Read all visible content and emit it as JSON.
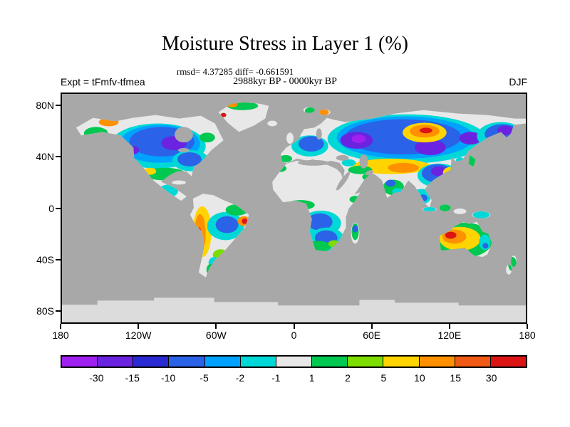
{
  "title": "Moisture Stress in Layer 1 (%)",
  "stats_line": "rmsd= 4.37285 diff= -0.661591",
  "period_line": "2988kyr BP - 0000kyr BP",
  "experiment_label": "Expt = tFmfv-tfmea",
  "season_label": "DJF",
  "axes": {
    "y_ticks": [
      "80N",
      "40N",
      "0",
      "40S",
      "80S"
    ],
    "x_ticks": [
      "180",
      "120W",
      "60W",
      "0",
      "60E",
      "120E",
      "180"
    ]
  },
  "colorbar": {
    "labels": [
      "-30",
      "-15",
      "-10",
      "-5",
      "-2",
      "-1",
      "1",
      "2",
      "5",
      "10",
      "15",
      "30"
    ],
    "colors": [
      "#a020f0",
      "#6a23e0",
      "#2a2ad4",
      "#2a62e8",
      "#00a2ff",
      "#00d8d8",
      "#e8e8e8",
      "#00c850",
      "#7ddc00",
      "#ffd400",
      "#ff9000",
      "#f05a14",
      "#dc1414"
    ]
  },
  "map_colors": {
    "ocean": "#a8a8a8",
    "land": "#e8e8e8",
    "antarctica": "#dcdcdc"
  },
  "chart_data": {
    "type": "heatmap",
    "title": "Moisture Stress in Layer 1 (%)",
    "difference_period": "2988kyr BP - 0000kyr BP",
    "experiment": "tFmfv-tfmea",
    "season": "DJF",
    "units": "%",
    "stats": {
      "rmsd": 4.37285,
      "diff": -0.661591
    },
    "projection": "global cylindrical equidistant; anomaly shading over land only, oceans gray, Antarctica light gray",
    "lon_ticks": [
      "180",
      "120W",
      "60W",
      "0",
      "60E",
      "120E",
      "180"
    ],
    "lat_ticks": [
      "80N",
      "40N",
      "0",
      "40S",
      "80S"
    ],
    "lon_range_deg": [
      -180,
      180
    ],
    "lat_range_deg": [
      -90,
      90
    ],
    "contour_levels": [
      -30,
      -15,
      -10,
      -5,
      -2,
      -1,
      1,
      2,
      5,
      10,
      15,
      30
    ],
    "level_colors": [
      "#a020f0",
      "#6a23e0",
      "#2a2ad4",
      "#2a62e8",
      "#00a2ff",
      "#00d8d8",
      "#e8e8e8",
      "#00c850",
      "#7ddc00",
      "#ffd400",
      "#ff9000",
      "#f05a14",
      "#dc1414"
    ],
    "regions_estimated": [
      {
        "region": "Canada / central North America",
        "value_range_pct": "-15 to -2"
      },
      {
        "region": "Pacific Northwest coast spot",
        "value_range_pct": "+15 to >30"
      },
      {
        "region": "Alaska and southern US band",
        "value_range_pct": "+1 to +2, local +5 to +15"
      },
      {
        "region": "northern Greenland fringe",
        "value_range_pct": "+1 to +15"
      },
      {
        "region": "Europe through Siberia broad band",
        "value_range_pct": "-30 to -2"
      },
      {
        "region": "central Siberia core",
        "value_range_pct": "+5 to >30"
      },
      {
        "region": "Kazakhstan-Mongolia band",
        "value_range_pct": "+5 to +15"
      },
      {
        "region": "eastern China",
        "value_range_pct": "-15 to -2 with +5 to +15 near coast"
      },
      {
        "region": "India / Southeast Asia",
        "value_range_pct": "-5 to +2"
      },
      {
        "region": "Andes (Peru/Chile)",
        "value_range_pct": "+5 to >30"
      },
      {
        "region": "Amazon interior",
        "value_range_pct": "-10 to -1"
      },
      {
        "region": "east Brazil coast spot",
        "value_range_pct": "+15 to >30"
      },
      {
        "region": "central and southern Africa",
        "value_range_pct": "-10 to -1 with +1 to +5 edges"
      },
      {
        "region": "Australia interior",
        "value_range_pct": "+2 to >30, east coast -5 to -1"
      }
    ]
  }
}
